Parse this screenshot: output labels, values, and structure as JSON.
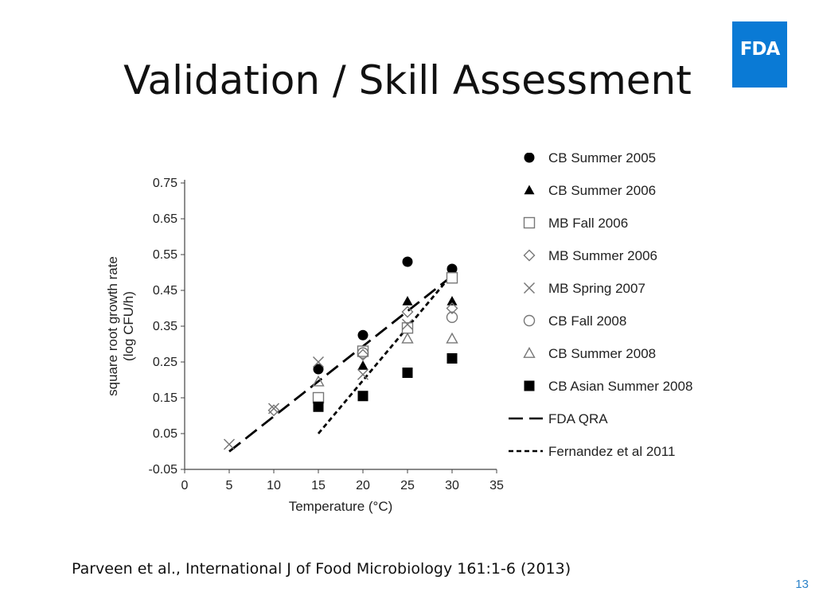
{
  "slide": {
    "title": "Validation / Skill Assessment",
    "logo_text": "FDA",
    "citation": "Parveen et al., International J of Food Microbiology 161:1-6 (2013)",
    "page_number": "13"
  },
  "colors": {
    "logo": "#0a7ad5",
    "page_number": "#2a82c9"
  },
  "chart_data": {
    "type": "scatter",
    "xlabel": "Temperature (°C)",
    "ylabel_lines": [
      "square root growth rate",
      "(log CFU/h)"
    ],
    "xlim": [
      0,
      35
    ],
    "ylim": [
      -0.05,
      0.75
    ],
    "xticks": [
      "0",
      "5",
      "10",
      "15",
      "20",
      "25",
      "30",
      "35"
    ],
    "yticks": [
      "-0.05",
      "0.05",
      "0.15",
      "0.25",
      "0.35",
      "0.45",
      "0.55",
      "0.65",
      "0.75"
    ],
    "grid": false,
    "legend_position": "right",
    "series": [
      {
        "name": "CB Summer 2005",
        "marker": "circle-filled",
        "points": [
          [
            15,
            0.23
          ],
          [
            20,
            0.325
          ],
          [
            25,
            0.53
          ],
          [
            30,
            0.51
          ]
        ]
      },
      {
        "name": "CB Summer 2006",
        "marker": "triangle-filled",
        "points": [
          [
            15,
            0.145
          ],
          [
            20,
            0.24
          ],
          [
            25,
            0.42
          ],
          [
            30,
            0.42
          ]
        ]
      },
      {
        "name": "MB Fall 2006",
        "marker": "square-open",
        "points": [
          [
            15,
            0.15
          ],
          [
            20,
            0.28
          ],
          [
            25,
            0.345
          ],
          [
            30,
            0.485
          ]
        ]
      },
      {
        "name": "MB Summer 2006",
        "marker": "diamond-open",
        "points": [
          [
            10,
            0.115
          ],
          [
            20,
            0.27
          ],
          [
            25,
            0.39
          ],
          [
            30,
            0.4
          ]
        ]
      },
      {
        "name": "MB Spring 2007",
        "marker": "x",
        "points": [
          [
            5,
            0.02
          ],
          [
            10,
            0.12
          ],
          [
            15,
            0.25
          ],
          [
            20,
            0.215
          ],
          [
            25,
            0.355
          ]
        ]
      },
      {
        "name": "CB Fall 2008",
        "marker": "circle-open",
        "points": [
          [
            20,
            0.275
          ],
          [
            30,
            0.375
          ]
        ]
      },
      {
        "name": "CB Summer 2008",
        "marker": "triangle-open",
        "points": [
          [
            15,
            0.195
          ],
          [
            25,
            0.315
          ],
          [
            30,
            0.315
          ]
        ]
      },
      {
        "name": "CB Asian Summer 2008",
        "marker": "square-filled",
        "points": [
          [
            15,
            0.125
          ],
          [
            20,
            0.155
          ],
          [
            25,
            0.22
          ],
          [
            30,
            0.26
          ]
        ]
      }
    ],
    "lines": [
      {
        "name": "FDA QRA",
        "style": "long-dash",
        "points": [
          [
            5,
            0.0
          ],
          [
            30,
            0.49
          ]
        ]
      },
      {
        "name": "Fernandez et al 2011",
        "style": "short-dash",
        "points": [
          [
            15,
            0.05
          ],
          [
            30,
            0.495
          ]
        ]
      }
    ]
  }
}
